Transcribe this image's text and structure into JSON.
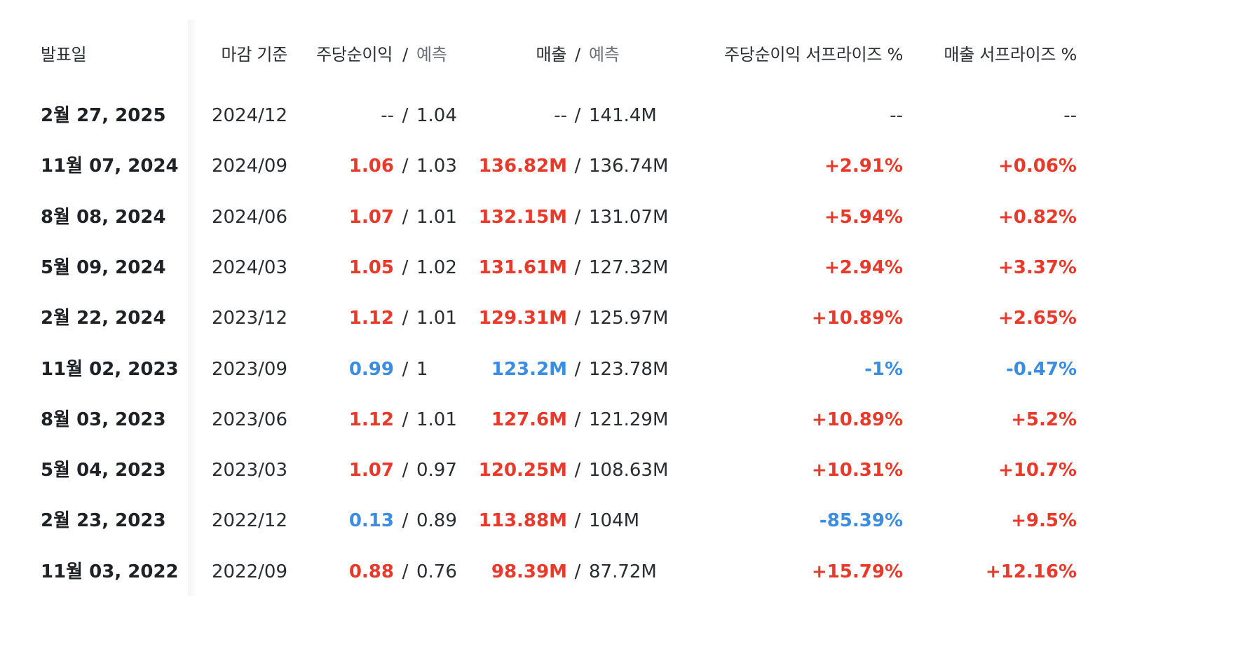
{
  "colors": {
    "beat": "#e8392b",
    "miss": "#3a8de0",
    "neutral": "#2a2c30"
  },
  "header": {
    "date": "발표일",
    "period": "마감 기준",
    "eps": "주당순이익",
    "eps_forecast": "예측",
    "revenue": "매출",
    "revenue_forecast": "예측",
    "eps_surprise": "주당순이익 서프라이즈 %",
    "revenue_surprise": "매출 서프라이즈 %",
    "slash": "/"
  },
  "rows": [
    {
      "date": "2월 27, 2025",
      "period": "2024/12",
      "eps": "--",
      "eps_forecast": "1.04",
      "revenue": "--",
      "revenue_forecast": "141.4M",
      "eps_surprise": "--",
      "revenue_surprise": "--",
      "eps_status": "none",
      "rev_status": "none",
      "eps_sur_status": "none",
      "rev_sur_status": "none"
    },
    {
      "date": "11월 07, 2024",
      "period": "2024/09",
      "eps": "1.06",
      "eps_forecast": "1.03",
      "revenue": "136.82M",
      "revenue_forecast": "136.74M",
      "eps_surprise": "+2.91%",
      "revenue_surprise": "+0.06%",
      "eps_status": "up",
      "rev_status": "up",
      "eps_sur_status": "up",
      "rev_sur_status": "up"
    },
    {
      "date": "8월 08, 2024",
      "period": "2024/06",
      "eps": "1.07",
      "eps_forecast": "1.01",
      "revenue": "132.15M",
      "revenue_forecast": "131.07M",
      "eps_surprise": "+5.94%",
      "revenue_surprise": "+0.82%",
      "eps_status": "up",
      "rev_status": "up",
      "eps_sur_status": "up",
      "rev_sur_status": "up"
    },
    {
      "date": "5월 09, 2024",
      "period": "2024/03",
      "eps": "1.05",
      "eps_forecast": "1.02",
      "revenue": "131.61M",
      "revenue_forecast": "127.32M",
      "eps_surprise": "+2.94%",
      "revenue_surprise": "+3.37%",
      "eps_status": "up",
      "rev_status": "up",
      "eps_sur_status": "up",
      "rev_sur_status": "up"
    },
    {
      "date": "2월 22, 2024",
      "period": "2023/12",
      "eps": "1.12",
      "eps_forecast": "1.01",
      "revenue": "129.31M",
      "revenue_forecast": "125.97M",
      "eps_surprise": "+10.89%",
      "revenue_surprise": "+2.65%",
      "eps_status": "up",
      "rev_status": "up",
      "eps_sur_status": "up",
      "rev_sur_status": "up"
    },
    {
      "date": "11월 02, 2023",
      "period": "2023/09",
      "eps": "0.99",
      "eps_forecast": "1",
      "revenue": "123.2M",
      "revenue_forecast": "123.78M",
      "eps_surprise": "-1%",
      "revenue_surprise": "-0.47%",
      "eps_status": "down",
      "rev_status": "down",
      "eps_sur_status": "down",
      "rev_sur_status": "down"
    },
    {
      "date": "8월 03, 2023",
      "period": "2023/06",
      "eps": "1.12",
      "eps_forecast": "1.01",
      "revenue": "127.6M",
      "revenue_forecast": "121.29M",
      "eps_surprise": "+10.89%",
      "revenue_surprise": "+5.2%",
      "eps_status": "up",
      "rev_status": "up",
      "eps_sur_status": "up",
      "rev_sur_status": "up"
    },
    {
      "date": "5월 04, 2023",
      "period": "2023/03",
      "eps": "1.07",
      "eps_forecast": "0.97",
      "revenue": "120.25M",
      "revenue_forecast": "108.63M",
      "eps_surprise": "+10.31%",
      "revenue_surprise": "+10.7%",
      "eps_status": "up",
      "rev_status": "up",
      "eps_sur_status": "up",
      "rev_sur_status": "up"
    },
    {
      "date": "2월 23, 2023",
      "period": "2022/12",
      "eps": "0.13",
      "eps_forecast": "0.89",
      "revenue": "113.88M",
      "revenue_forecast": "104M",
      "eps_surprise": "-85.39%",
      "revenue_surprise": "+9.5%",
      "eps_status": "down",
      "rev_status": "up",
      "eps_sur_status": "down",
      "rev_sur_status": "up"
    },
    {
      "date": "11월 03, 2022",
      "period": "2022/09",
      "eps": "0.88",
      "eps_forecast": "0.76",
      "revenue": "98.39M",
      "revenue_forecast": "87.72M",
      "eps_surprise": "+15.79%",
      "revenue_surprise": "+12.16%",
      "eps_status": "up",
      "rev_status": "up",
      "eps_sur_status": "up",
      "rev_sur_status": "up"
    }
  ]
}
